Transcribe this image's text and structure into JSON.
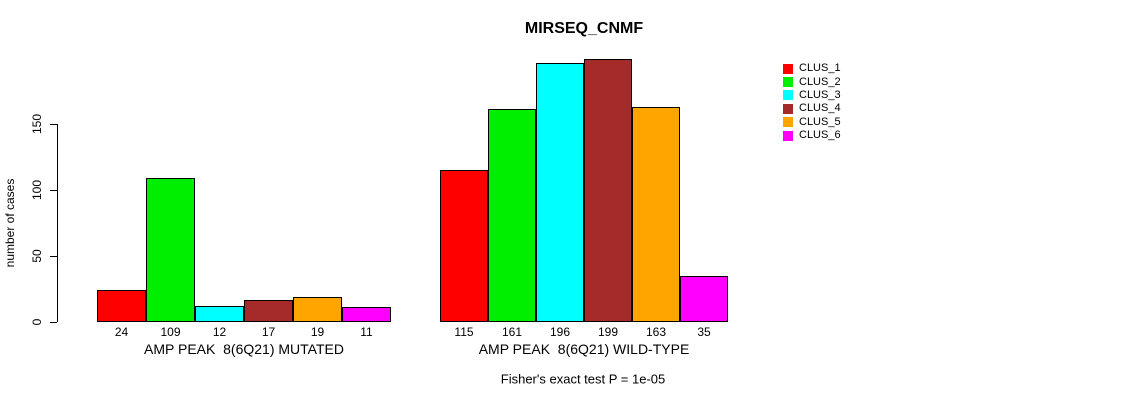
{
  "chart_data": {
    "type": "bar",
    "title": "MIRSEQ_CNMF",
    "ylabel": "number of cases",
    "xlabel": "",
    "annotation": "Fisher's exact test P = 1e-05",
    "ylim": [
      0,
      199
    ],
    "yticks": [
      0,
      50,
      100,
      150
    ],
    "grid": false,
    "legend_position": "right",
    "series_labels": [
      "CLUS_1",
      "CLUS_2",
      "CLUS_3",
      "CLUS_4",
      "CLUS_5",
      "CLUS_6"
    ],
    "colors": [
      "#ff0000",
      "#00ee00",
      "#00ffff",
      "#a52a2a",
      "#ffa500",
      "#ff00ff"
    ],
    "groups": [
      {
        "label": "AMP PEAK  8(6Q21) MUTATED",
        "values": [
          24,
          109,
          12,
          17,
          19,
          11
        ]
      },
      {
        "label": "AMP PEAK  8(6Q21) WILD-TYPE",
        "values": [
          115,
          161,
          196,
          199,
          163,
          35
        ]
      }
    ]
  }
}
